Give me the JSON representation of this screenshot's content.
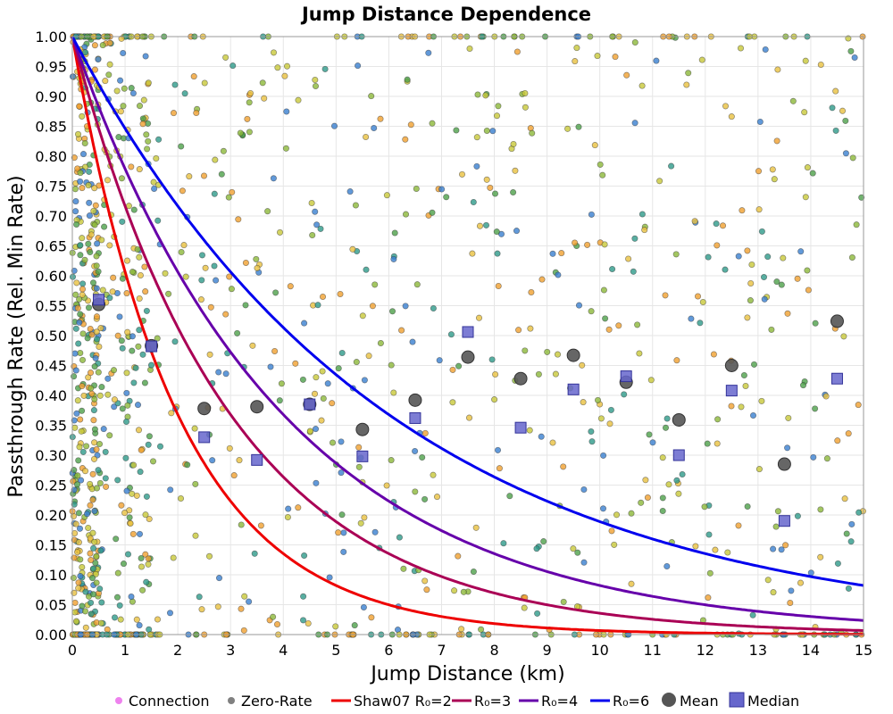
{
  "chart_data": {
    "type": "scatter",
    "title": "Jump Distance Dependence",
    "xlabel": "Jump Distance (km)",
    "ylabel": "Passthrough Rate (Rel. Min Rate)",
    "xlim": [
      0,
      15
    ],
    "ylim": [
      0,
      1
    ],
    "x_ticks": [
      0,
      1,
      2,
      3,
      4,
      5,
      6,
      7,
      8,
      9,
      10,
      11,
      12,
      13,
      14,
      15
    ],
    "x_tick_labels": [
      "0",
      "1",
      "2",
      "3",
      "4",
      "5",
      "6",
      "7",
      "8",
      "9",
      "10",
      "11",
      "12",
      "13",
      "14",
      "15"
    ],
    "y_ticks": [
      0,
      0.05,
      0.1,
      0.15,
      0.2,
      0.25,
      0.3,
      0.35,
      0.4,
      0.45,
      0.5,
      0.55,
      0.6,
      0.65,
      0.7,
      0.75,
      0.8,
      0.85,
      0.9,
      0.95,
      1.0
    ],
    "y_tick_labels": [
      "0.00",
      "0.05",
      "0.10",
      "0.15",
      "0.20",
      "0.25",
      "0.30",
      "0.35",
      "0.40",
      "0.45",
      "0.50",
      "0.55",
      "0.60",
      "0.65",
      "0.70",
      "0.75",
      "0.80",
      "0.85",
      "0.90",
      "0.95",
      "1.00"
    ],
    "grid": true,
    "legend_position": "bottom",
    "legend": [
      {
        "label": "Connection",
        "marker": "dot",
        "color": "#ee82ee"
      },
      {
        "label": "Zero-Rate",
        "marker": "dot",
        "color": "#808080"
      },
      {
        "label": "Shaw07 R₀=2",
        "marker": "line",
        "color": "#ee0000"
      },
      {
        "label": "R₀=3",
        "marker": "line",
        "color": "#aa0055"
      },
      {
        "label": "R₀=4",
        "marker": "line",
        "color": "#6600aa"
      },
      {
        "label": "R₀=6",
        "marker": "line",
        "color": "#0000ee"
      },
      {
        "label": "Mean",
        "marker": "circle",
        "color": "#555555"
      },
      {
        "label": "Median",
        "marker": "square",
        "color": "#6666cc"
      }
    ],
    "curves": [
      {
        "name": "Shaw07 R₀=2",
        "color": "#ee0000",
        "decay_km": 2.0
      },
      {
        "name": "R₀=3",
        "color": "#aa0055",
        "decay_km": 3.0
      },
      {
        "name": "R₀=4",
        "color": "#6600aa",
        "decay_km": 4.0
      },
      {
        "name": "R₀=6",
        "color": "#0000ee",
        "decay_km": 6.0
      }
    ],
    "mean": {
      "x": [
        0.5,
        1.5,
        2.5,
        3.5,
        4.5,
        5.5,
        6.5,
        7.5,
        8.5,
        9.5,
        10.5,
        11.5,
        12.5,
        13.5,
        14.5
      ],
      "y": [
        0.552,
        0.483,
        0.378,
        0.381,
        0.385,
        0.343,
        0.392,
        0.464,
        0.428,
        0.467,
        0.422,
        0.359,
        0.45,
        0.285,
        0.524
      ]
    },
    "median": {
      "x": [
        0.5,
        1.5,
        2.5,
        3.5,
        4.5,
        5.5,
        6.5,
        7.5,
        8.5,
        9.5,
        10.5,
        11.5,
        12.5,
        13.5,
        14.5
      ],
      "y": [
        0.56,
        0.482,
        0.33,
        0.292,
        0.385,
        0.298,
        0.362,
        0.506,
        0.346,
        0.41,
        0.432,
        0.3,
        0.408,
        0.19,
        0.428
      ]
    },
    "point_colors": [
      "#3a7fd0",
      "#2e9a8a",
      "#4ea04a",
      "#8cb83a",
      "#c8c83a",
      "#e8c040",
      "#f0a030"
    ],
    "connections": {
      "count": 1300,
      "seed": 42,
      "description": "Scattered connection points, dense for x < 1 km, sparse thereafter; many at y = 0 and y = 1"
    }
  }
}
